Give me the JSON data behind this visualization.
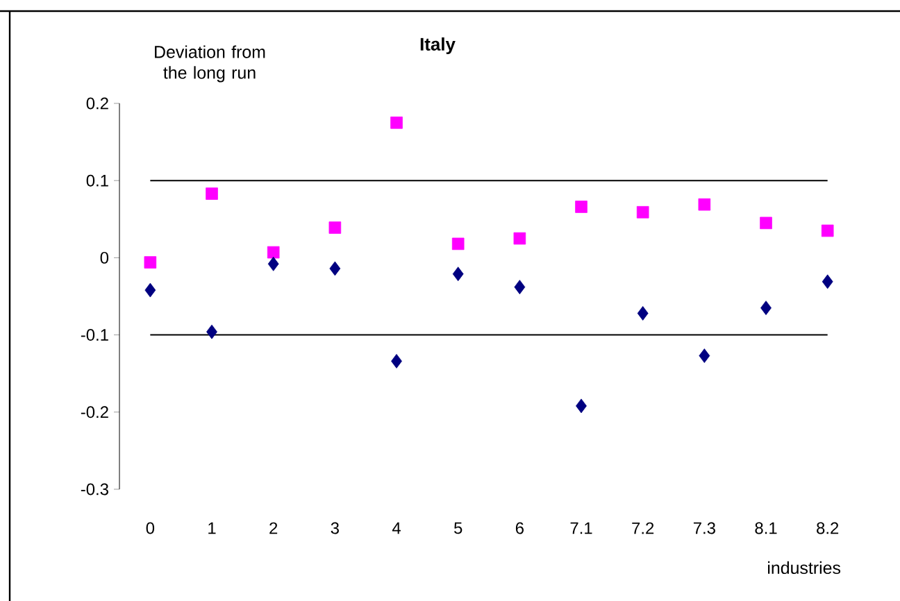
{
  "chart_data": {
    "type": "scatter",
    "title": "Italy",
    "annotations": [
      "Deviation from the long run"
    ],
    "xlabel": "industries",
    "categories": [
      "0",
      "1",
      "2",
      "3",
      "4",
      "5",
      "6",
      "7.1",
      "7.2",
      "7.3",
      "8.1",
      "8.2"
    ],
    "ylim": [
      -0.3,
      0.2
    ],
    "yticks": [
      0.2,
      0.1,
      0,
      -0.1,
      -0.2,
      -0.3
    ],
    "ref_lines": [
      {
        "axis": "y",
        "value": 0.1,
        "color": "#000000"
      },
      {
        "axis": "y",
        "value": -0.1,
        "color": "#000000"
      }
    ],
    "series": [
      {
        "color": "#ff00ff",
        "marker": "square",
        "values": [
          -0.006,
          0.083,
          0.007,
          0.039,
          0.175,
          0.018,
          0.025,
          0.066,
          0.059,
          0.069,
          0.045,
          0.035
        ]
      },
      {
        "color": "#000080",
        "marker": "diamond",
        "values": [
          -0.042,
          -0.096,
          -0.008,
          -0.014,
          -0.134,
          -0.021,
          -0.038,
          -0.192,
          -0.072,
          -0.127,
          -0.065,
          -0.031
        ]
      }
    ]
  }
}
